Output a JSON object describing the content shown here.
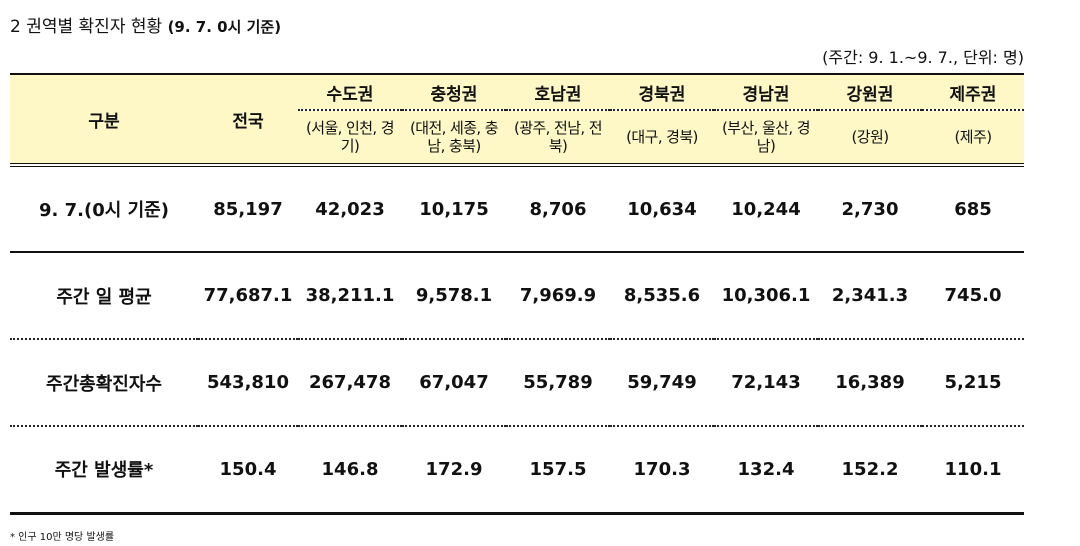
{
  "title": "2  권역별 확진자 현황",
  "title_sub": "(9. 7. 0시 기준)",
  "unit_note": "(주간: 9. 1.~9. 7., 단위: 명)",
  "header": {
    "category": "구분",
    "national": "전국",
    "regions": [
      {
        "name": "수도권",
        "detail": "(서울, 인천, 경기)"
      },
      {
        "name": "충청권",
        "detail": "(대전, 세종, 충남, 충북)"
      },
      {
        "name": "호남권",
        "detail": "(광주, 전남, 전북)"
      },
      {
        "name": "경북권",
        "detail": "(대구, 경북)"
      },
      {
        "name": "경남권",
        "detail": "(부산, 울산, 경남)"
      },
      {
        "name": "강원권",
        "detail": "(강원)"
      },
      {
        "name": "제주권",
        "detail": "(제주)"
      }
    ]
  },
  "rows": [
    {
      "label": "9. 7.(0시 기준)",
      "values": [
        "85,197",
        "42,023",
        "10,175",
        "8,706",
        "10,634",
        "10,244",
        "2,730",
        "685"
      ]
    },
    {
      "label": "주간 일 평균",
      "values": [
        "77,687.1",
        "38,211.1",
        "9,578.1",
        "7,969.9",
        "8,535.6",
        "10,306.1",
        "2,341.3",
        "745.0"
      ]
    },
    {
      "label": "주간총확진자수",
      "values": [
        "543,810",
        "267,478",
        "67,047",
        "55,789",
        "59,749",
        "72,143",
        "16,389",
        "5,215"
      ]
    },
    {
      "label": "주간 발생률*",
      "values": [
        "150.4",
        "146.8",
        "172.9",
        "157.5",
        "170.3",
        "132.4",
        "152.2",
        "110.1"
      ]
    }
  ],
  "footnote": "* 인구 10만 명당 발생률"
}
